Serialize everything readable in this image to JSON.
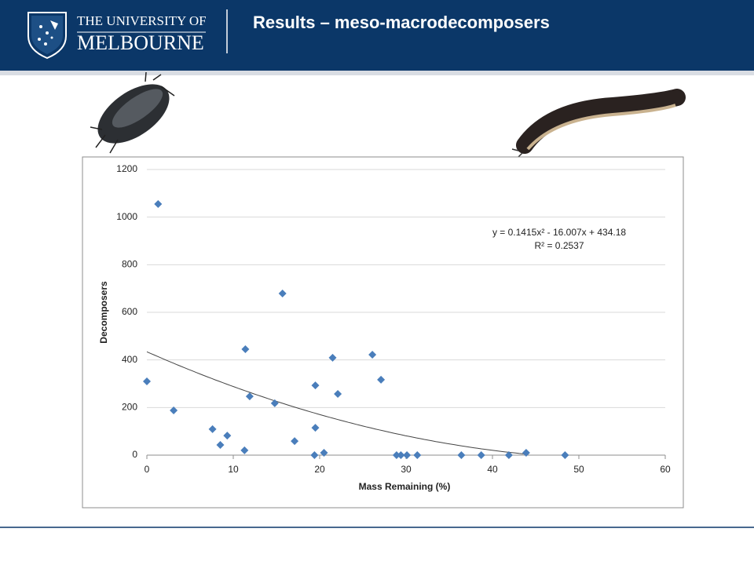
{
  "header": {
    "university_line1": "THE UNIVERSITY OF",
    "university_line2": "MELBOURNE",
    "title": "Results – meso-macrodecomposers"
  },
  "chart_data": {
    "type": "scatter",
    "x_label": "Mass Remaining (%)",
    "y_label": "Decomposers",
    "x": [
      0,
      1.3,
      3.1,
      7.6,
      8.5,
      9.3,
      11.3,
      11.4,
      11.9,
      14.8,
      15.7,
      17.1,
      19.4,
      19.5,
      19.5,
      20.5,
      21.5,
      22.1,
      26.1,
      27.1,
      28.9,
      29.4,
      30.1,
      31.3,
      36.4,
      38.7,
      41.9,
      43.9,
      48.4
    ],
    "values": [
      310,
      1055,
      188,
      109,
      43,
      82,
      20,
      445,
      247,
      218,
      679,
      59,
      0,
      293,
      115,
      10,
      409,
      257,
      422,
      317,
      0,
      0,
      0,
      0,
      0,
      0,
      0,
      10,
      0
    ],
    "color": "#4a7ebb",
    "xlim": [
      0,
      60
    ],
    "xticks": [
      0,
      10,
      20,
      30,
      40,
      50,
      60
    ],
    "ylim": [
      0,
      1200
    ],
    "yticks": [
      0,
      200,
      400,
      600,
      800,
      1000,
      1200
    ],
    "grid": true,
    "trendline": {
      "coefficients": [
        0.1415,
        -16.007,
        434.18
      ],
      "xrange": [
        0,
        44
      ]
    },
    "annotations": [
      "y = 0.1415x² - 16.007x + 434.18",
      "R² = 0.2537"
    ]
  }
}
